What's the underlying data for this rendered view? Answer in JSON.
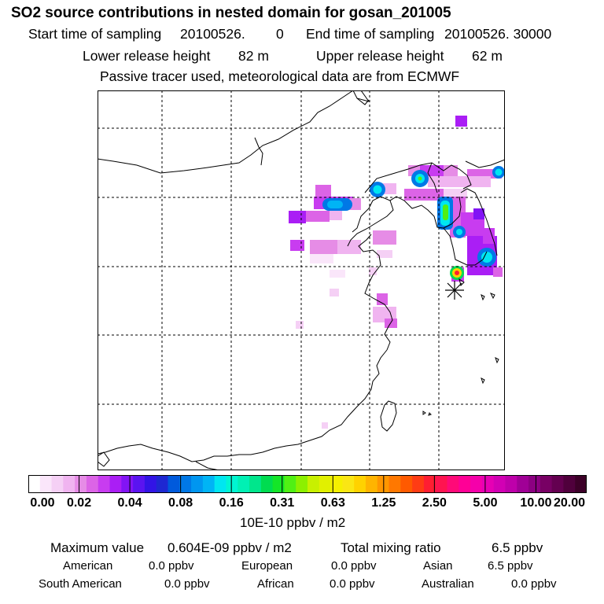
{
  "header": {
    "title": "SO2 source contributions in nested domain for gosan_201005",
    "start_label": "Start time of sampling",
    "start_value": "20100526.",
    "start_time": "0",
    "end_label": "End time of sampling",
    "end_value": "20100526. 30000",
    "lower_label": "Lower release height",
    "lower_value": "82 m",
    "upper_label": "Upper release height",
    "upper_value": "62 m",
    "tracer_note": "Passive tracer used, meteorological data are from ECMWF"
  },
  "map": {
    "land_color": "#ffffff",
    "coast_color": "#000000",
    "grid_color": "#000000",
    "receptor_marker": "asterisk-receptor-icon"
  },
  "legend": {
    "tick_labels": [
      "0.00",
      "0.02",
      "0.04",
      "0.08",
      "0.16",
      "0.31",
      "0.63",
      "1.25",
      "2.50",
      "5.00",
      "10.00",
      "20.00"
    ],
    "unit": "10E-10 ppbv / m2",
    "colors": [
      "#ffffff",
      "#fae6fa",
      "#f5d0f5",
      "#f0b4f0",
      "#e68ce6",
      "#dc64e6",
      "#c83cf0",
      "#aa1ef5",
      "#8214f5",
      "#5a14f0",
      "#3214e6",
      "#1e28d2",
      "#005adc",
      "#0078e6",
      "#0096f0",
      "#00b4f5",
      "#00e6f0",
      "#00f5d2",
      "#00f0b4",
      "#00e68c",
      "#00dc50",
      "#14e628",
      "#50f014",
      "#8cf000",
      "#c8f000",
      "#e1f000",
      "#f5f000",
      "#fae614",
      "#ffd200",
      "#ffb400",
      "#ff9600",
      "#ff7800",
      "#ff5a00",
      "#ff3c14",
      "#ff1e32",
      "#ff1450",
      "#ff0a78",
      "#ff0096",
      "#f500aa",
      "#e600b4",
      "#d200b4",
      "#be00aa",
      "#a00096",
      "#8c0082",
      "#780064",
      "#640050",
      "#50003c",
      "#3c0028"
    ]
  },
  "stats": {
    "max_label": "Maximum value",
    "max_value": "0.604E-09 ppbv / m2",
    "total_label": "Total mixing ratio",
    "total_value": "6.5 ppbv",
    "regions": [
      {
        "name": "American",
        "value": "0.0 ppbv"
      },
      {
        "name": "European",
        "value": "0.0 ppbv"
      },
      {
        "name": "Asian",
        "value": "6.5 ppbv"
      },
      {
        "name": "South American",
        "value": "0.0 ppbv"
      },
      {
        "name": "African",
        "value": "0.0 ppbv"
      },
      {
        "name": "Australian",
        "value": "0.0 ppbv"
      }
    ]
  }
}
